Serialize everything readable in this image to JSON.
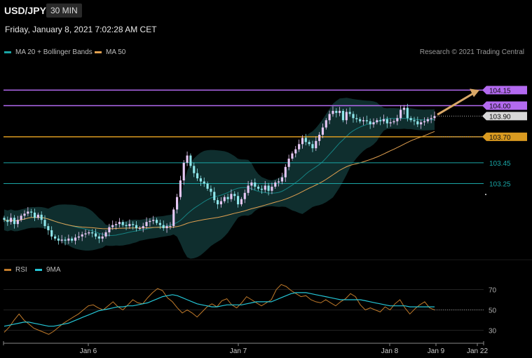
{
  "header": {
    "symbol": "USD/JPY",
    "timeframe": "30 MIN"
  },
  "datetime": "Friday, January 8, 2021 7:02:28 AM CET",
  "legend": {
    "ma20": {
      "label": "MA 20 + Bollinger Bands",
      "color": "#1aa5a5"
    },
    "ma50": {
      "label": "MA 50",
      "color": "#e0a050"
    }
  },
  "credit": "Research © 2021 Trading Central",
  "rsi_legend": {
    "rsi": {
      "label": "RSI",
      "color": "#c07a2a"
    },
    "ma9": {
      "label": "9MA",
      "color": "#25c6d6"
    }
  },
  "colors": {
    "bull": "#e6c8f5",
    "bear": "#8fe6ea",
    "resistance": "#b36af0",
    "support": "#d99a20",
    "level": "#1aa5a5",
    "band": "#0f2e2e",
    "arrow": "#d9a868"
  },
  "chart_data": [
    {
      "type": "candlestick",
      "title": "USD/JPY 30 MIN",
      "ylim": [
        102.55,
        104.45
      ],
      "x_ticks": [
        "Jan 6",
        "Jan 7",
        "Jan 8",
        "Jan 9",
        "Jan 22"
      ],
      "levels": [
        {
          "value": 104.15,
          "label": "104.15",
          "kind": "resistance"
        },
        {
          "value": 104.0,
          "label": "104.00",
          "kind": "resistance"
        },
        {
          "value": 103.9,
          "label": "103.90",
          "kind": "last"
        },
        {
          "value": 103.7,
          "label": "103.70",
          "kind": "support"
        },
        {
          "value": 103.45,
          "label": "103.45",
          "kind": "level"
        },
        {
          "value": 103.25,
          "label": "103.25",
          "kind": "level"
        }
      ],
      "arrow": {
        "from": 103.9,
        "to": 104.15
      },
      "close_series": [
        102.9,
        102.88,
        102.92,
        102.86,
        102.9,
        102.94,
        102.96,
        102.98,
        102.97,
        102.92,
        102.95,
        102.9,
        102.84,
        102.8,
        102.74,
        102.72,
        102.7,
        102.71,
        102.7,
        102.72,
        102.7,
        102.73,
        102.74,
        102.76,
        102.77,
        102.78,
        102.77,
        102.74,
        102.72,
        102.74,
        102.78,
        102.83,
        102.85,
        102.86,
        102.88,
        102.85,
        102.84,
        102.86,
        102.85,
        102.82,
        102.82,
        102.84,
        102.88,
        102.89,
        102.9,
        102.87,
        102.85,
        102.82,
        102.84,
        102.84,
        103.0,
        103.12,
        103.28,
        103.45,
        103.52,
        103.42,
        103.35,
        103.3,
        103.27,
        103.25,
        103.2,
        103.17,
        103.09,
        103.05,
        103.08,
        103.12,
        103.1,
        103.15,
        103.13,
        103.05,
        103.1,
        103.16,
        103.23,
        103.26,
        103.22,
        103.2,
        103.19,
        103.23,
        103.18,
        103.22,
        103.26,
        103.27,
        103.31,
        103.41,
        103.49,
        103.54,
        103.58,
        103.63,
        103.69,
        103.65,
        103.63,
        103.59,
        103.66,
        103.72,
        103.79,
        103.86,
        103.92,
        103.95,
        103.93,
        103.95,
        103.86,
        103.94,
        103.92,
        103.88,
        103.87,
        103.85,
        103.86,
        103.85,
        103.82,
        103.84,
        103.86,
        103.85,
        103.87,
        103.83,
        103.84,
        103.85,
        103.88,
        103.96,
        103.98,
        103.88,
        103.86,
        103.85,
        103.82,
        103.84,
        103.85,
        103.87,
        103.88,
        103.9
      ]
    },
    {
      "type": "line",
      "title": "RSI",
      "ylim": [
        20,
        80
      ],
      "y_ticks": [
        "70",
        "50",
        "30"
      ],
      "series": [
        {
          "name": "RSI",
          "values": [
            28,
            33,
            40,
            46,
            40,
            36,
            32,
            30,
            28,
            26,
            29,
            33,
            37,
            40,
            43,
            46,
            50,
            54,
            55,
            52,
            50,
            54,
            58,
            53,
            50,
            55,
            60,
            57,
            56,
            62,
            67,
            71,
            69,
            62,
            58,
            52,
            47,
            50,
            47,
            43,
            48,
            53,
            56,
            53,
            59,
            61,
            55,
            52,
            57,
            63,
            60,
            57,
            54,
            57,
            60,
            70,
            75,
            73,
            69,
            66,
            63,
            64,
            60,
            58,
            57,
            60,
            57,
            54,
            58,
            61,
            66,
            63,
            55,
            50,
            52,
            50,
            48,
            53,
            50,
            56,
            60,
            52,
            46,
            51,
            55,
            58,
            52,
            50
          ]
        },
        {
          "name": "9MA",
          "values": [
            34,
            35,
            36,
            37,
            38,
            38,
            37,
            36,
            35,
            34,
            34,
            35,
            36,
            37,
            39,
            41,
            43,
            45,
            47,
            49,
            50,
            51,
            52,
            53,
            53,
            54,
            54,
            55,
            56,
            57,
            59,
            61,
            63,
            64,
            65,
            64,
            62,
            60,
            58,
            56,
            55,
            54,
            53,
            53,
            54,
            55,
            55,
            55,
            55,
            56,
            57,
            58,
            58,
            58,
            58,
            60,
            62,
            64,
            66,
            67,
            67,
            67,
            66,
            65,
            64,
            63,
            62,
            61,
            60,
            60,
            60,
            60,
            60,
            59,
            58,
            57,
            56,
            55,
            54,
            54,
            54,
            54,
            53,
            53,
            53,
            53,
            53,
            53
          ]
        }
      ]
    }
  ]
}
